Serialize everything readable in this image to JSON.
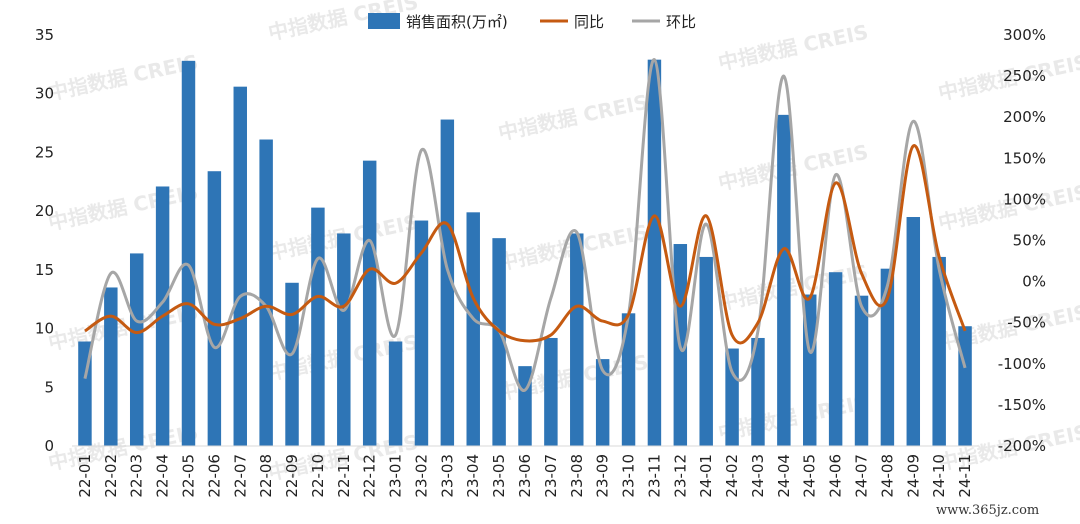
{
  "chart_data": {
    "type": "bar",
    "categories": [
      "22-01",
      "22-02",
      "22-03",
      "22-04",
      "22-05",
      "22-06",
      "22-07",
      "22-08",
      "22-09",
      "22-10",
      "22-11",
      "22-12",
      "23-01",
      "23-02",
      "23-03",
      "23-04",
      "23-05",
      "23-06",
      "23-07",
      "23-08",
      "23-09",
      "23-10",
      "23-11",
      "23-12",
      "24-01",
      "24-02",
      "24-03",
      "24-04",
      "24-05",
      "24-06",
      "24-07",
      "24-08",
      "24-09",
      "24-10",
      "24-11"
    ],
    "series": [
      {
        "name": "销售面积(万㎡)",
        "type": "bar",
        "axis": "left",
        "color": "#2E75B6",
        "values": [
          8.9,
          13.5,
          16.4,
          22.1,
          32.8,
          23.4,
          30.6,
          26.1,
          13.9,
          20.3,
          18.1,
          24.3,
          8.9,
          19.2,
          27.8,
          19.9,
          17.7,
          6.8,
          9.2,
          18.1,
          7.4,
          11.3,
          32.9,
          17.2,
          16.1,
          8.3,
          9.2,
          28.2,
          12.9,
          14.8,
          12.8,
          15.1,
          19.5,
          16.1,
          10.2
        ]
      },
      {
        "name": "同比",
        "type": "line",
        "axis": "right",
        "color": "#C55A11",
        "values": [
          -60,
          -42,
          -62,
          -42,
          -27,
          -52,
          -45,
          -30,
          -40,
          -18,
          -30,
          15,
          -2,
          35,
          70,
          -20,
          -60,
          -72,
          -65,
          -30,
          -48,
          -40,
          80,
          -30,
          80,
          -65,
          -50,
          40,
          -20,
          120,
          10,
          -20,
          165,
          30,
          -60
        ]
      },
      {
        "name": "环比",
        "type": "line",
        "axis": "right",
        "color": "#A6A6A6",
        "values": [
          -118,
          10,
          -48,
          -25,
          20,
          -80,
          -18,
          -30,
          -88,
          28,
          -35,
          50,
          -65,
          160,
          15,
          -45,
          -60,
          -132,
          -20,
          60,
          -108,
          -40,
          270,
          -80,
          70,
          -110,
          -60,
          250,
          -85,
          130,
          -30,
          -5,
          195,
          15,
          -105
        ]
      }
    ],
    "ylim": [
      0,
      35
    ],
    "y_ticks": [
      "0",
      "5",
      "10",
      "15",
      "20",
      "25",
      "30",
      "35"
    ],
    "y2lim": [
      -200,
      300
    ],
    "y2_ticks": [
      "-200%",
      "-150%",
      "-100%",
      "-50%",
      "0%",
      "50%",
      "100%",
      "150%",
      "200%",
      "250%",
      "300%"
    ],
    "grid": false,
    "legend_position": "top"
  },
  "watermark": "中指数据 CREIS",
  "source_site": "www.365jz.com"
}
